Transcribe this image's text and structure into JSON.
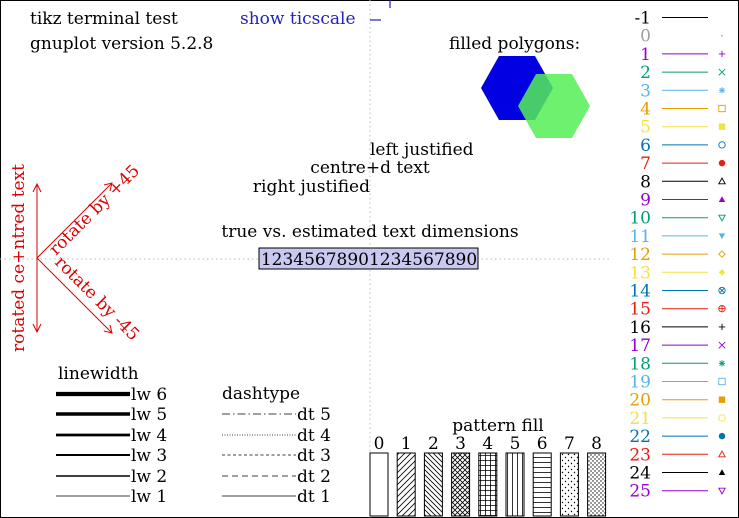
{
  "header": {
    "line1": "tikz terminal test",
    "line2": "gnuplot version 5.2.8",
    "show_ticscale": "show ticscale"
  },
  "polygons": {
    "label": "filled polygons:"
  },
  "justify": {
    "left": "left justified",
    "centre": "centre+d text",
    "right": "right justified"
  },
  "dims": {
    "label": "true vs. estimated text dimensions",
    "sample": "12345678901234567890"
  },
  "rotate": {
    "centred": "rotated ce+ntred text",
    "plus45": "rotate by +45",
    "minus45": "rotate by -45"
  },
  "linewidth": {
    "title": "linewidth",
    "items": [
      "lw 6",
      "lw 5",
      "lw 4",
      "lw 3",
      "lw 2",
      "lw 1"
    ]
  },
  "dashtype": {
    "title": "dashtype",
    "items": [
      "dt 5",
      "dt 4",
      "dt 3",
      "dt 2",
      "dt 1"
    ]
  },
  "pattern": {
    "title": "pattern fill",
    "labels": [
      "0",
      "1",
      "2",
      "3",
      "4",
      "5",
      "6",
      "7",
      "8"
    ]
  },
  "legend": {
    "labels": [
      "-1",
      "0",
      "1",
      "2",
      "3",
      "4",
      "5",
      "6",
      "7",
      "8",
      "9",
      "10",
      "11",
      "12",
      "13",
      "14",
      "15",
      "16",
      "17",
      "18",
      "19",
      "20",
      "21",
      "22",
      "23",
      "24",
      "25"
    ],
    "colors": [
      "#000000",
      "#a0a0a0",
      "#9400d3",
      "#009e73",
      "#56b4e9",
      "#e69f00",
      "#f0e442",
      "#0072b2",
      "#e51e10",
      "#000000",
      "#9400d3",
      "#009e73",
      "#56b4e9",
      "#e69f00",
      "#f0e442",
      "#0072b2",
      "#e51e10",
      "#000000",
      "#9400d3",
      "#009e73",
      "#56b4e9",
      "#e69f00",
      "#f0e442",
      "#0072b2",
      "#e51e10",
      "#000000",
      "#9400d3"
    ],
    "markers": [
      "none",
      "dot",
      "plus",
      "cross",
      "star",
      "box",
      "box-filled",
      "circle",
      "circle-filled",
      "triangle",
      "triangle-filled",
      "triangle-down",
      "triangle-down-filled",
      "diamond",
      "diamond-filled",
      "circle-cross",
      "circle-plus",
      "plus",
      "cross",
      "star",
      "box",
      "box-filled",
      "circle",
      "circle-filled",
      "triangle",
      "triangle-filled",
      "triangle-down"
    ]
  },
  "colors": {
    "red": "#dd0000",
    "blue_text": "#2222bb",
    "hex_blue": "#0000e0",
    "hex_green": "#55ee55",
    "box_fill": "#c8c8f0"
  }
}
